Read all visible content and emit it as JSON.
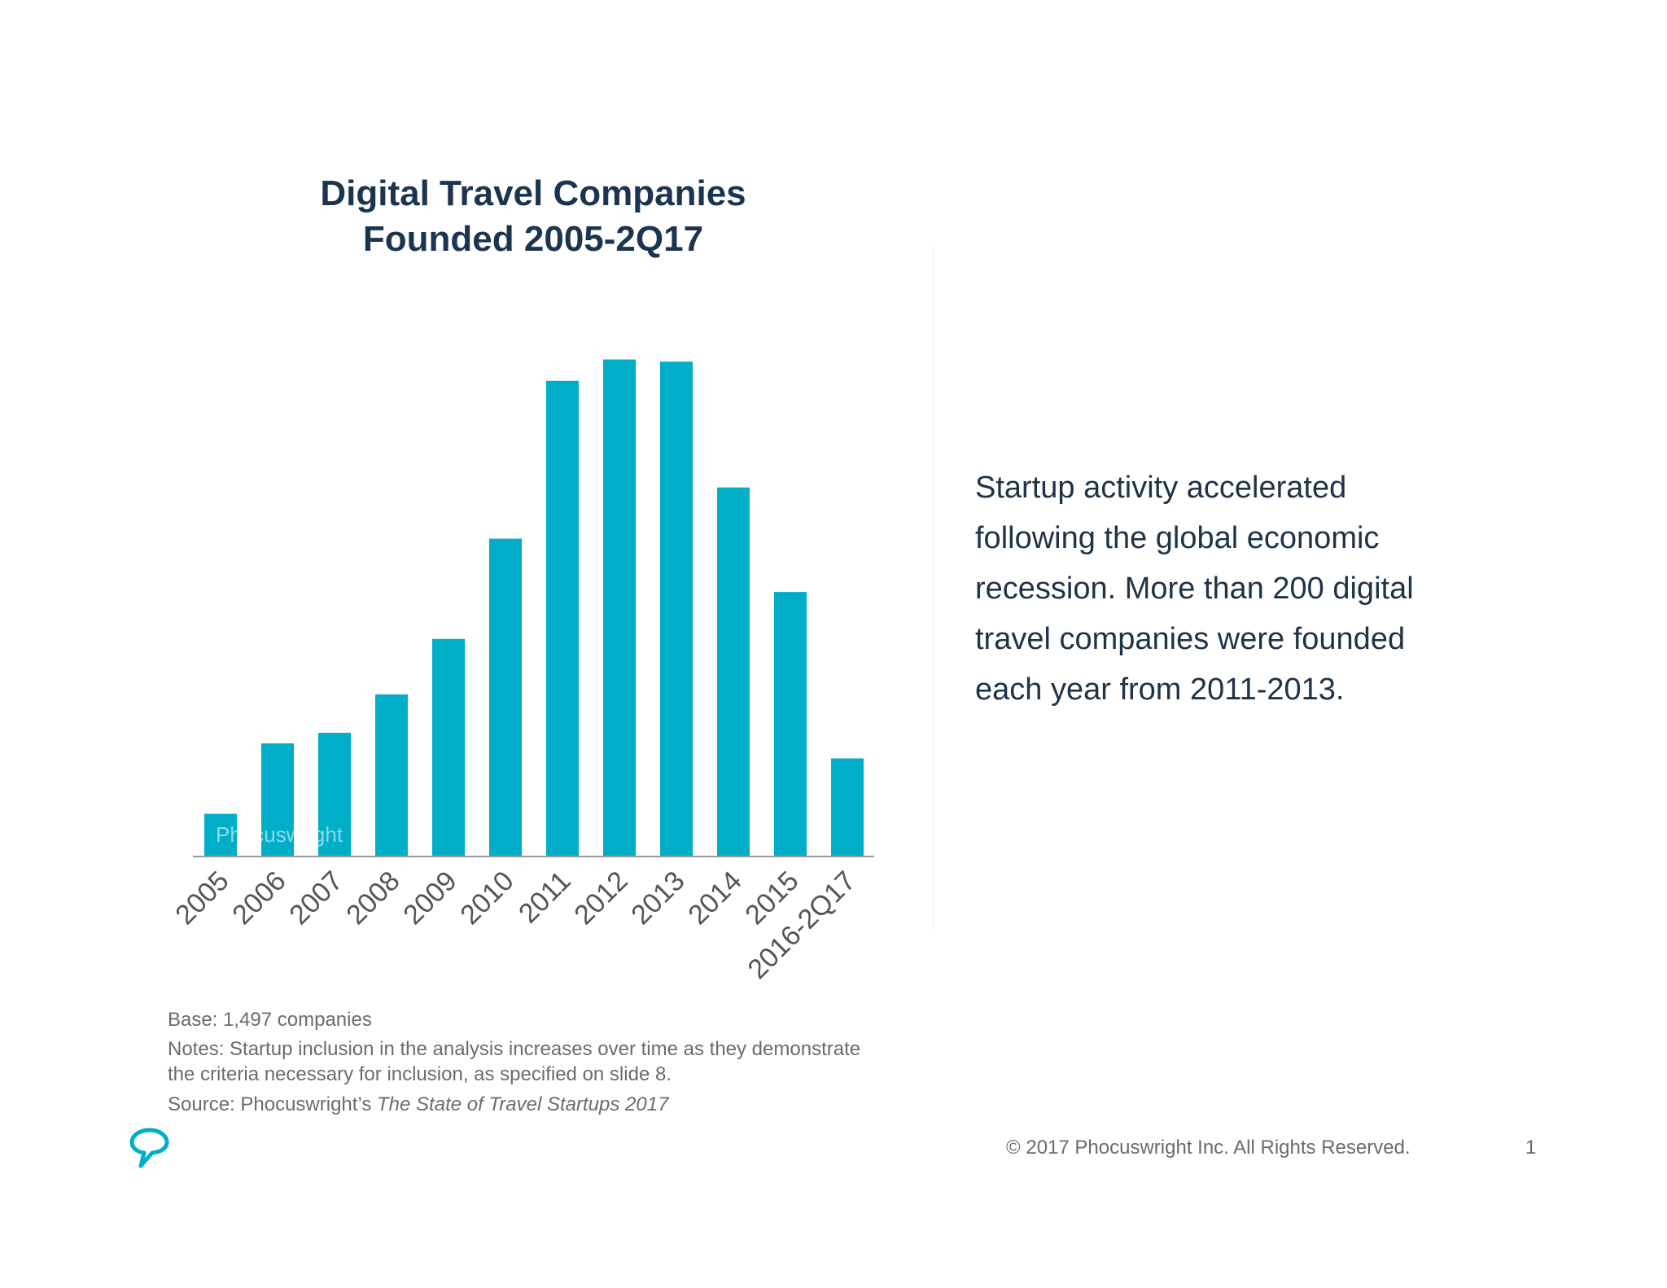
{
  "chart_data": {
    "type": "bar",
    "title": [
      "Digital Travel Companies",
      "Founded 2005-2Q17"
    ],
    "categories": [
      "2005",
      "2006",
      "2007",
      "2008",
      "2009",
      "2010",
      "2011",
      "2012",
      "2013",
      "2014",
      "2015",
      "2016-2Q17"
    ],
    "values": [
      20,
      53,
      58,
      76,
      102,
      149,
      223,
      233,
      232,
      173,
      124,
      46
    ],
    "xlabel": "",
    "ylabel": "",
    "ylim": [
      0,
      250
    ],
    "grid": false,
    "legend": "none",
    "bar_color": "#00aec7",
    "axis_color": "#9a9a9a",
    "watermark": "Phocuswright"
  },
  "callout": {
    "lines": [
      "Startup activity accelerated",
      "following the global economic",
      "recession. More than 200 digital",
      "travel companies were founded",
      "each year from 2011-2013."
    ]
  },
  "notes": {
    "base": "Base: 1,497 companies",
    "notes_line1": "Notes: Startup inclusion in the analysis increases over time as they demonstrate",
    "notes_line2": "the criteria necessary for inclusion, as specified on slide 8.",
    "source_prefix": "Source: Phocuswright’s ",
    "source_title": "The State of Travel Startups 2017"
  },
  "footer": {
    "copyright": "© 2017 Phocuswright Inc. All Rights Reserved.",
    "page_number": "1",
    "logo_icon": "speech-bubble-logo-icon",
    "logo_color": "#00aec7"
  }
}
